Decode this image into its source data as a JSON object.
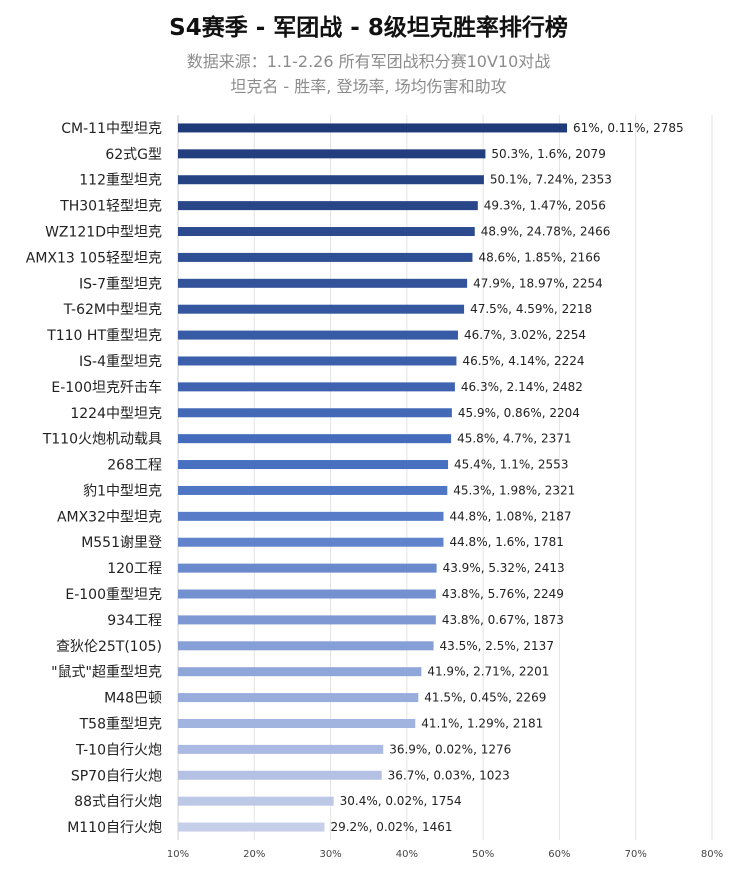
{
  "chart_data": {
    "type": "bar",
    "orientation": "horizontal",
    "title": "S4赛季 - 军团战 - 8级坦克胜率排行榜",
    "subtitle_lines": [
      "数据来源：1.1-2.26 所有军团战积分赛10V10对战",
      "坦克名 - 胜率, 登场率, 场均伤害和助攻"
    ],
    "xlim": [
      10,
      80
    ],
    "xticks": [
      "10%",
      "20%",
      "30%",
      "40%",
      "50%",
      "60%",
      "70%",
      "80%"
    ],
    "grid": true,
    "legend": "none",
    "categories": [
      "CM-11中型坦克",
      "62式G型",
      "112重型坦克",
      "TH301轻型坦克",
      "WZ121D中型坦克",
      "AMX13 105轻型坦克",
      "IS-7重型坦克",
      "T-62M中型坦克",
      "T110 HT重型坦克",
      "IS-4重型坦克",
      "E-100坦克歼击车",
      "1224中型坦克",
      "T110火炮机动载具",
      "268工程",
      "豹1中型坦克",
      "AMX32中型坦克",
      "M551谢里登",
      "120工程",
      "E-100重型坦克",
      "934工程",
      "查狄伦25T(105)",
      "\"鼠式\"超重型坦克",
      "M48巴顿",
      "T58重型坦克",
      "T-10自行火炮",
      "SP70自行火炮",
      "88式自行火炮",
      "M110自行火炮"
    ],
    "values": [
      61,
      50.3,
      50.1,
      49.3,
      48.9,
      48.6,
      47.9,
      47.5,
      46.7,
      46.5,
      46.3,
      45.9,
      45.8,
      45.4,
      45.3,
      44.8,
      44.8,
      43.9,
      43.8,
      43.8,
      43.5,
      41.9,
      41.5,
      41.1,
      36.9,
      36.7,
      30.4,
      29.2
    ],
    "labels": [
      "61%, 0.11%, 2785",
      "50.3%, 1.6%, 2079",
      "50.1%, 7.24%, 2353",
      "49.3%, 1.47%, 2056",
      "48.9%, 24.78%, 2466",
      "48.6%, 1.85%, 2166",
      "47.9%, 18.97%, 2254",
      "47.5%, 4.59%, 2218",
      "46.7%, 3.02%, 2254",
      "46.5%, 4.14%, 2224",
      "46.3%, 2.14%, 2482",
      "45.9%, 0.86%, 2204",
      "45.8%, 4.7%, 2371",
      "45.4%, 1.1%, 2553",
      "45.3%, 1.98%, 2321",
      "44.8%, 1.08%, 2187",
      "44.8%, 1.6%, 1781",
      "43.9%, 5.32%, 2413",
      "43.8%, 5.76%, 2249",
      "43.8%, 0.67%, 1873",
      "43.5%, 2.5%, 2137",
      "41.9%, 2.71%, 2201",
      "41.5%, 0.45%, 2269",
      "41.1%, 1.29%, 2181",
      "36.9%, 0.02%, 1276",
      "36.7%, 0.03%, 1023",
      "30.4%, 0.02%, 1754",
      "29.2%, 0.02%, 1461"
    ],
    "colors": {
      "start": "#1f3a78",
      "mid": "#4a72c4",
      "end": "#c6cfea"
    }
  }
}
